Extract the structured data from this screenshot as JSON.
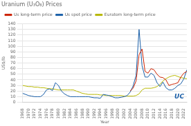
{
  "chart_data": {
    "type": "line",
    "title": "Uranium (U₃O₈) Prices",
    "x_label": "Year",
    "y_label": "US$/lb",
    "x": [
      1968,
      1969,
      1970,
      1971,
      1972,
      1973,
      1974,
      1975,
      1976,
      1977,
      1978,
      1979,
      1980,
      1981,
      1982,
      1983,
      1984,
      1985,
      1986,
      1987,
      1988,
      1989,
      1990,
      1991,
      1992,
      1993,
      1994,
      1995,
      1996,
      1997,
      1998,
      1999,
      2000,
      2001,
      2002,
      2003,
      2004,
      2005,
      2006,
      2007,
      2008,
      2009,
      2010,
      2011,
      2012,
      2013,
      2014,
      2015,
      2016,
      2017,
      2018,
      2019,
      2020,
      2021,
      2022,
      2023
    ],
    "series": [
      {
        "name": "Us long-term price",
        "color": "#cc2200",
        "values": [
          null,
          null,
          null,
          null,
          null,
          null,
          null,
          null,
          null,
          null,
          null,
          null,
          null,
          null,
          null,
          null,
          null,
          null,
          null,
          null,
          null,
          null,
          null,
          null,
          null,
          null,
          null,
          null,
          null,
          null,
          null,
          null,
          null,
          null,
          null,
          null,
          20,
          25,
          38,
          85,
          95,
          55,
          52,
          60,
          58,
          50,
          45,
          44,
          40,
          30,
          32,
          33,
          35,
          45,
          52,
          55
        ]
      },
      {
        "name": "Us spot price",
        "color": "#1a5fa8",
        "values": [
          16,
          14,
          12,
          11,
          10,
          10,
          10,
          14,
          22,
          24,
          21,
          35,
          30,
          20,
          15,
          12,
          10,
          10,
          10,
          10,
          10,
          10,
          10,
          9,
          8,
          8,
          7,
          14,
          13,
          12,
          10,
          8,
          8,
          9,
          10,
          12,
          18,
          29,
          48,
          130,
          65,
          45,
          45,
          52,
          48,
          35,
          28,
          36,
          26,
          22,
          22,
          25,
          30,
          33,
          42,
          58
        ]
      },
      {
        "name": "Euratom long-term price",
        "color": "#b8b800",
        "values": [
          30,
          29,
          28,
          28,
          27,
          27,
          26,
          26,
          25,
          24,
          24,
          23,
          22,
          22,
          22,
          22,
          22,
          22,
          20,
          18,
          16,
          15,
          14,
          14,
          14,
          14,
          13,
          13,
          12,
          12,
          12,
          12,
          12,
          12,
          11,
          11,
          11,
          11,
          12,
          15,
          22,
          25,
          25,
          25,
          26,
          28,
          32,
          38,
          42,
          45,
          47,
          48,
          46,
          44,
          43,
          42
        ]
      }
    ],
    "xlim": [
      1968,
      2023
    ],
    "xticks": [
      1968,
      1970,
      1972,
      1974,
      1976,
      1978,
      1980,
      1982,
      1984,
      1986,
      1988,
      1990,
      1992,
      1994,
      1996,
      1998,
      2000,
      2002,
      2004,
      2006,
      2008,
      2010,
      2012,
      2014,
      2016,
      2018,
      2020,
      2022
    ],
    "ylim": [
      0,
      140
    ],
    "yticks": [
      0,
      10,
      20,
      30,
      40,
      50,
      60,
      70,
      80,
      90,
      100,
      110,
      120,
      130,
      140
    ],
    "grid": "y",
    "legend": "upper left",
    "annotations": [
      {
        "text": "UC",
        "color": "#1a5fa8"
      }
    ]
  }
}
